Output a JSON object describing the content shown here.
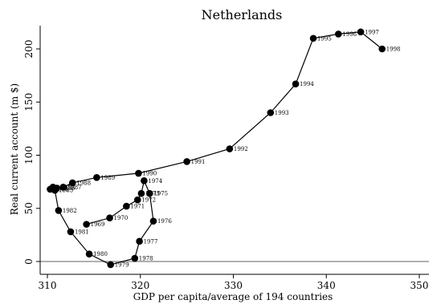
{
  "chart_data": {
    "type": "scatter",
    "title": "Netherlands",
    "xlabel": "GDP per capita/average of 194 countries",
    "ylabel": "Real current account (m $)",
    "xlim": [
      310,
      350
    ],
    "ylim": [
      0,
      200
    ],
    "xticks": [
      310,
      320,
      330,
      340,
      350
    ],
    "yticks": [
      0,
      50,
      100,
      150,
      200
    ],
    "grid": false,
    "connected": true,
    "marker_color": "#000000",
    "line_color": "#000000",
    "zero_line_color": "#b0b0b0",
    "points": [
      {
        "label": "1969",
        "x": 314.2,
        "y": 35
      },
      {
        "label": "1970",
        "x": 316.7,
        "y": 41
      },
      {
        "label": "1971",
        "x": 318.5,
        "y": 52
      },
      {
        "label": "1972",
        "x": 319.7,
        "y": 58
      },
      {
        "label": "1973",
        "x": 320.1,
        "y": 64
      },
      {
        "label": "1974",
        "x": 320.4,
        "y": 76
      },
      {
        "label": "1975",
        "x": 321.0,
        "y": 64
      },
      {
        "label": "1976",
        "x": 321.4,
        "y": 38
      },
      {
        "label": "1977",
        "x": 319.9,
        "y": 19
      },
      {
        "label": "1978",
        "x": 319.4,
        "y": 3
      },
      {
        "label": "1979",
        "x": 316.8,
        "y": -3
      },
      {
        "label": "1980",
        "x": 314.5,
        "y": 7
      },
      {
        "label": "1981",
        "x": 312.5,
        "y": 28
      },
      {
        "label": "1982",
        "x": 311.2,
        "y": 48
      },
      {
        "label": "1983",
        "x": 310.8,
        "y": 67
      },
      {
        "label": "1984",
        "x": 310.3,
        "y": 68
      },
      {
        "label": "1985",
        "x": 310.6,
        "y": 70
      },
      {
        "label": "1986",
        "x": 311.0,
        "y": 69
      },
      {
        "label": "1987",
        "x": 311.7,
        "y": 70
      },
      {
        "label": "1988",
        "x": 312.7,
        "y": 74
      },
      {
        "label": "1989",
        "x": 315.3,
        "y": 79
      },
      {
        "label": "1990",
        "x": 319.8,
        "y": 83
      },
      {
        "label": "1991",
        "x": 325.0,
        "y": 94
      },
      {
        "label": "1992",
        "x": 329.6,
        "y": 106
      },
      {
        "label": "1993",
        "x": 334.0,
        "y": 140
      },
      {
        "label": "1994",
        "x": 336.7,
        "y": 167
      },
      {
        "label": "1995",
        "x": 338.6,
        "y": 210
      },
      {
        "label": "1996",
        "x": 341.3,
        "y": 214
      },
      {
        "label": "1997",
        "x": 343.7,
        "y": 216
      },
      {
        "label": "1998",
        "x": 346.0,
        "y": 200
      }
    ]
  }
}
